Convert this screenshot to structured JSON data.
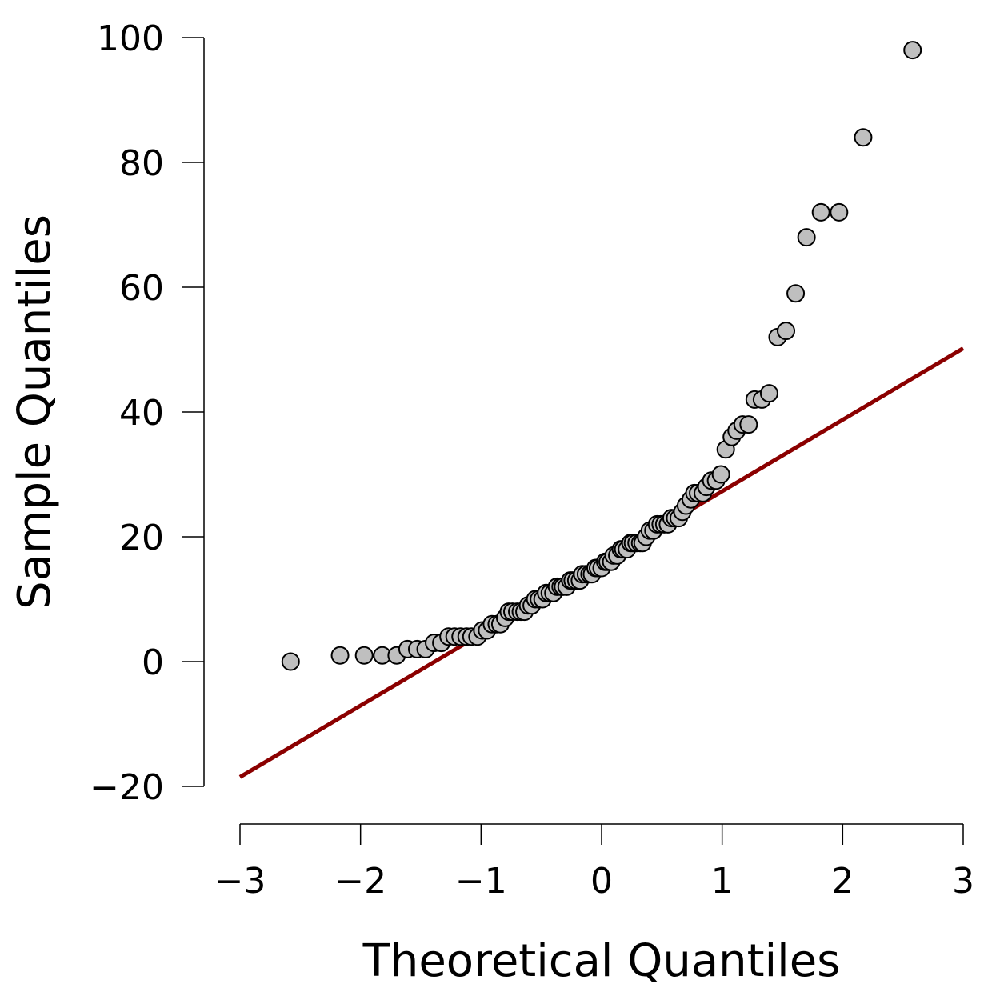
{
  "chart_data": {
    "type": "scatter",
    "title": "",
    "xlabel": "Theoretical Quantiles",
    "ylabel": "Sample Quantiles",
    "xlim": [
      -3,
      3
    ],
    "ylim": [
      -20,
      100
    ],
    "x_ticks": [
      -3,
      -2,
      -1,
      0,
      1,
      2,
      3
    ],
    "y_ticks": [
      -20,
      0,
      20,
      40,
      60,
      80,
      100
    ],
    "x_tick_labels": [
      "−3",
      "−2",
      "−1",
      "0",
      "1",
      "2",
      "3"
    ],
    "y_tick_labels": [
      "−20",
      "0",
      "20",
      "40",
      "60",
      "80",
      "100"
    ],
    "grid": false,
    "point_color": "#bfbfbf",
    "line_color": "#8b0000",
    "reference_line": {
      "x": [
        -3,
        3
      ],
      "y": [
        -18.5,
        50.2
      ]
    },
    "points": [
      [
        -2.58,
        0
      ],
      [
        -2.17,
        1
      ],
      [
        -1.97,
        1
      ],
      [
        -1.82,
        1
      ],
      [
        -1.7,
        1
      ],
      [
        -1.61,
        2
      ],
      [
        -1.53,
        2
      ],
      [
        -1.46,
        2
      ],
      [
        -1.39,
        3
      ],
      [
        -1.33,
        3
      ],
      [
        -1.27,
        4
      ],
      [
        -1.22,
        4
      ],
      [
        -1.17,
        4
      ],
      [
        -1.12,
        4
      ],
      [
        -1.08,
        4
      ],
      [
        -1.03,
        4
      ],
      [
        -0.99,
        5
      ],
      [
        -0.95,
        5
      ],
      [
        -0.91,
        6
      ],
      [
        -0.87,
        6
      ],
      [
        -0.84,
        6
      ],
      [
        -0.8,
        7
      ],
      [
        -0.77,
        8
      ],
      [
        -0.74,
        8
      ],
      [
        -0.7,
        8
      ],
      [
        -0.67,
        8
      ],
      [
        -0.64,
        8
      ],
      [
        -0.61,
        9
      ],
      [
        -0.58,
        9
      ],
      [
        -0.55,
        10
      ],
      [
        -0.52,
        10
      ],
      [
        -0.49,
        10
      ],
      [
        -0.46,
        11
      ],
      [
        -0.43,
        11
      ],
      [
        -0.4,
        11
      ],
      [
        -0.37,
        12
      ],
      [
        -0.34,
        12
      ],
      [
        -0.32,
        12
      ],
      [
        -0.29,
        12
      ],
      [
        -0.26,
        13
      ],
      [
        -0.24,
        13
      ],
      [
        -0.21,
        13
      ],
      [
        -0.18,
        13
      ],
      [
        -0.16,
        14
      ],
      [
        -0.13,
        14
      ],
      [
        -0.1,
        14
      ],
      [
        -0.08,
        14
      ],
      [
        -0.05,
        15
      ],
      [
        -0.03,
        15
      ],
      [
        0.0,
        15
      ],
      [
        0.03,
        16
      ],
      [
        0.05,
        16
      ],
      [
        0.08,
        16
      ],
      [
        0.1,
        17
      ],
      [
        0.13,
        17
      ],
      [
        0.16,
        18
      ],
      [
        0.18,
        18
      ],
      [
        0.21,
        18
      ],
      [
        0.24,
        19
      ],
      [
        0.26,
        19
      ],
      [
        0.29,
        19
      ],
      [
        0.32,
        19
      ],
      [
        0.34,
        19
      ],
      [
        0.37,
        20
      ],
      [
        0.4,
        21
      ],
      [
        0.43,
        21
      ],
      [
        0.46,
        22
      ],
      [
        0.49,
        22
      ],
      [
        0.52,
        22
      ],
      [
        0.55,
        22
      ],
      [
        0.58,
        23
      ],
      [
        0.61,
        23
      ],
      [
        0.64,
        23
      ],
      [
        0.67,
        24
      ],
      [
        0.7,
        25
      ],
      [
        0.74,
        26
      ],
      [
        0.77,
        27
      ],
      [
        0.8,
        27
      ],
      [
        0.84,
        27
      ],
      [
        0.87,
        28
      ],
      [
        0.91,
        29
      ],
      [
        0.95,
        29
      ],
      [
        0.99,
        30
      ],
      [
        1.03,
        34
      ],
      [
        1.08,
        36
      ],
      [
        1.12,
        37
      ],
      [
        1.17,
        38
      ],
      [
        1.22,
        38
      ],
      [
        1.27,
        42
      ],
      [
        1.33,
        42
      ],
      [
        1.39,
        43
      ],
      [
        1.46,
        52
      ],
      [
        1.53,
        53
      ],
      [
        1.61,
        59
      ],
      [
        1.7,
        68
      ],
      [
        1.82,
        72
      ],
      [
        1.97,
        72
      ],
      [
        2.17,
        84
      ],
      [
        2.58,
        98
      ]
    ]
  }
}
